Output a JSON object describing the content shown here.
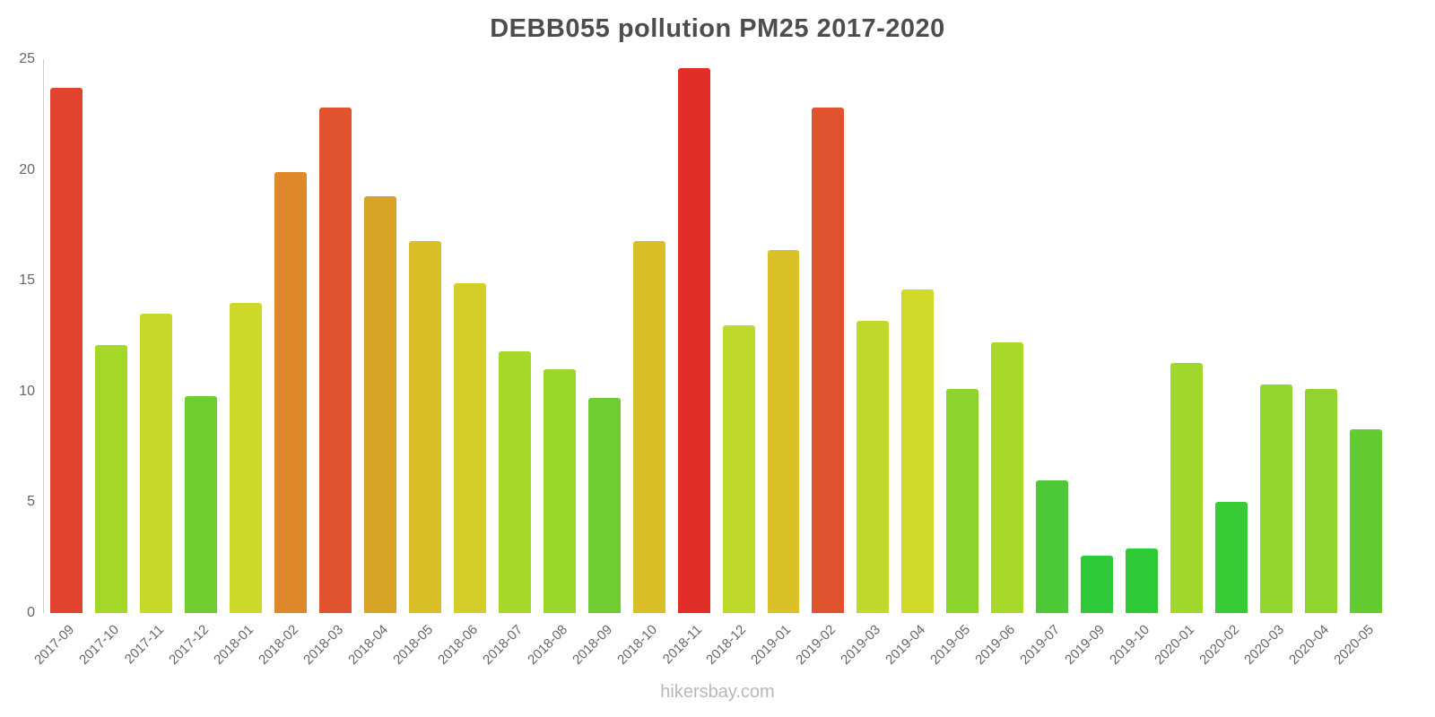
{
  "title": "DEBB055 pollution PM25 2017-2020",
  "watermark": "hikersbay.com",
  "chart_data": {
    "type": "bar",
    "title": "DEBB055 pollution PM25 2017-2020",
    "xlabel": "",
    "ylabel": "",
    "ylim": [
      0,
      25
    ],
    "yticks": [
      0,
      5,
      10,
      15,
      20,
      25
    ],
    "grid": false,
    "legend": false,
    "categories": [
      "2017-09",
      "2017-10",
      "2017-11",
      "2017-12",
      "2018-01",
      "2018-02",
      "2018-03",
      "2018-04",
      "2018-05",
      "2018-06",
      "2018-07",
      "2018-08",
      "2018-09",
      "2018-10",
      "2018-11",
      "2018-12",
      "2019-01",
      "2019-02",
      "2019-03",
      "2019-04",
      "2019-05",
      "2019-06",
      "2019-07",
      "2019-09",
      "2019-10",
      "2020-01",
      "2020-02",
      "2020-03",
      "2020-04",
      "2020-05"
    ],
    "values": [
      23.7,
      12.1,
      13.5,
      9.8,
      14.0,
      19.9,
      22.8,
      18.8,
      16.8,
      14.9,
      11.8,
      11.0,
      9.7,
      16.8,
      24.6,
      13.0,
      16.4,
      22.8,
      13.2,
      14.6,
      10.1,
      12.2,
      6.0,
      2.6,
      2.9,
      11.3,
      5.0,
      10.3,
      10.1,
      8.3
    ],
    "colors": [
      "#e2432e",
      "#a6d829",
      "#c6d929",
      "#70cd30",
      "#ccd928",
      "#de872b",
      "#e1522e",
      "#d8a426",
      "#d9be27",
      "#d5cd28",
      "#a5d829",
      "#9bd72b",
      "#6fcd31",
      "#d9be27",
      "#e12e28",
      "#bed92a",
      "#d9c127",
      "#e1522e",
      "#c0d92a",
      "#d0d928",
      "#8dd42d",
      "#a8d829",
      "#4cc934",
      "#2eca39",
      "#2fca38",
      "#9fd72a",
      "#38cb36",
      "#94d62c",
      "#90d52d",
      "#63cc31"
    ],
    "axis_color": "#cccccc",
    "tick_label_color": "#666666",
    "title_color": "#4d4d4d"
  }
}
